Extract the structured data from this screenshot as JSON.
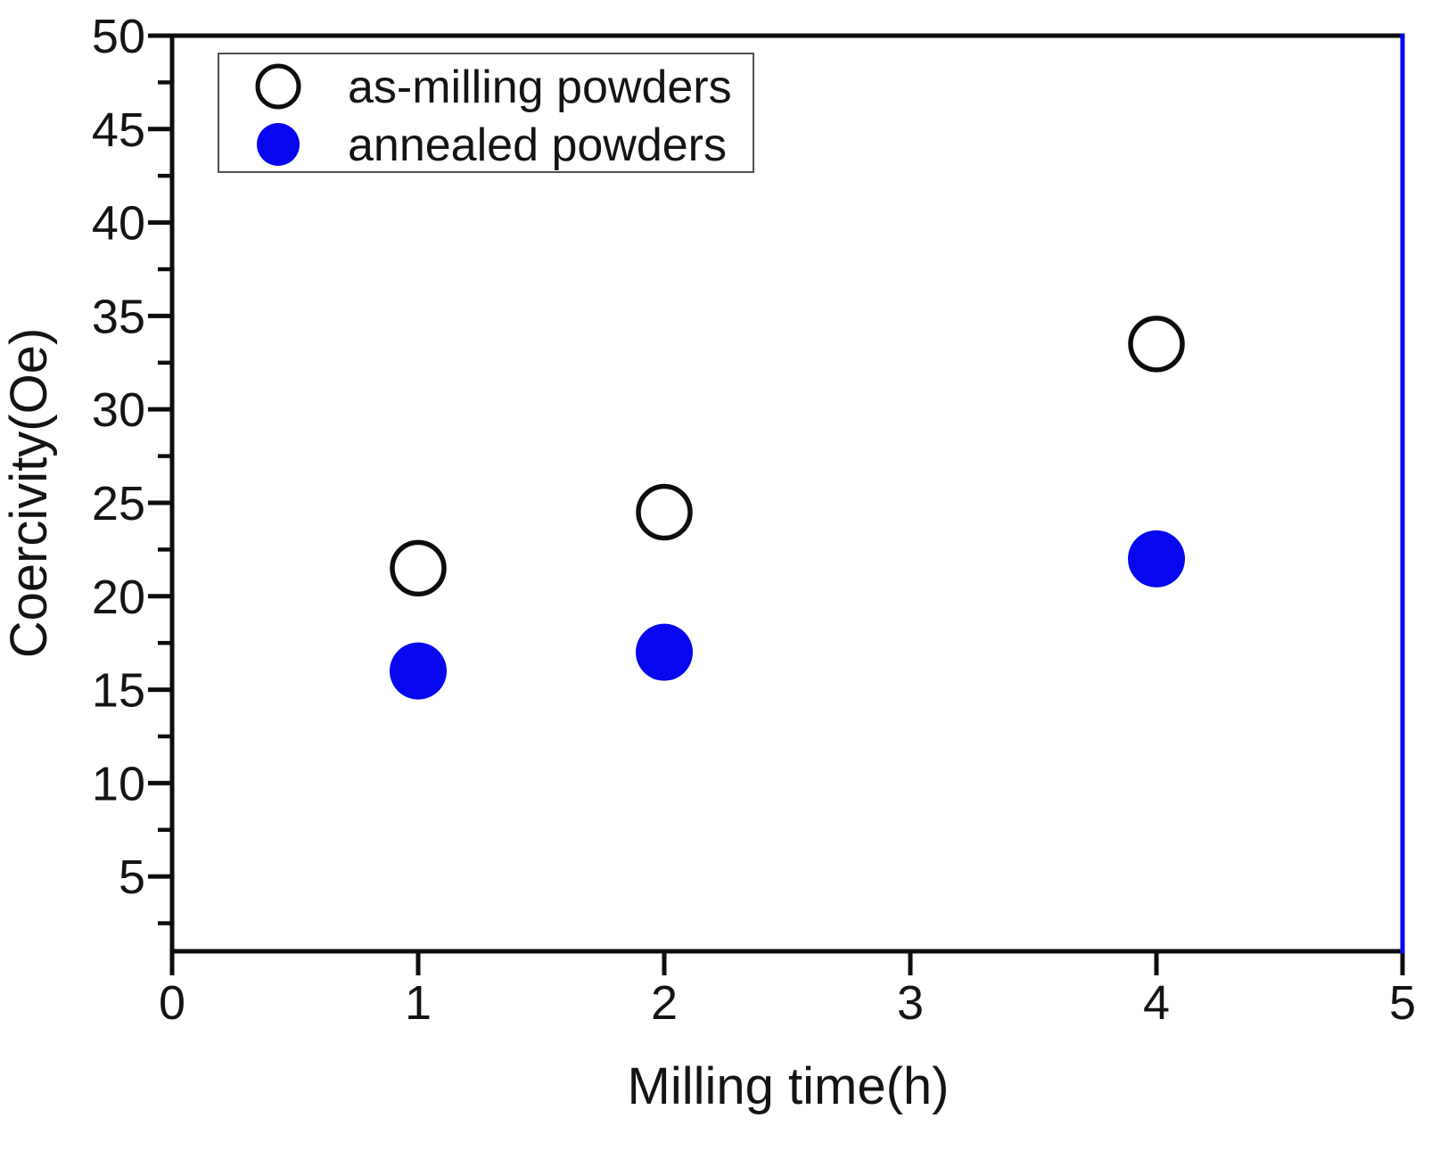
{
  "chart_data": {
    "type": "scatter",
    "title": "",
    "xlabel": "Milling time(h)",
    "ylabel": "Coercivity(Oe)",
    "xlim": [
      0,
      5
    ],
    "ylim": [
      1,
      50
    ],
    "x_ticks": [
      0,
      1,
      2,
      3,
      4,
      5
    ],
    "y_ticks": [
      5,
      10,
      15,
      20,
      25,
      30,
      35,
      40,
      45,
      50
    ],
    "y_minor_tick_start": 2.5,
    "y_minor_tick_step": 5,
    "grid": false,
    "legend_position": "top-left",
    "colors": {
      "axis_black": "#0d0d0d",
      "series_blue": "#0606ef",
      "right_spine_blue": "#0606ef"
    },
    "series": [
      {
        "name": "as-milling powders",
        "marker": "open-circle",
        "color": "#0d0d0d",
        "x": [
          1,
          2,
          4
        ],
        "y": [
          21.5,
          24.5,
          33.5
        ]
      },
      {
        "name": "annealed powders",
        "marker": "filled-circle",
        "color": "#0606ef",
        "x": [
          1,
          2,
          4
        ],
        "y": [
          16,
          17,
          22
        ]
      }
    ]
  }
}
